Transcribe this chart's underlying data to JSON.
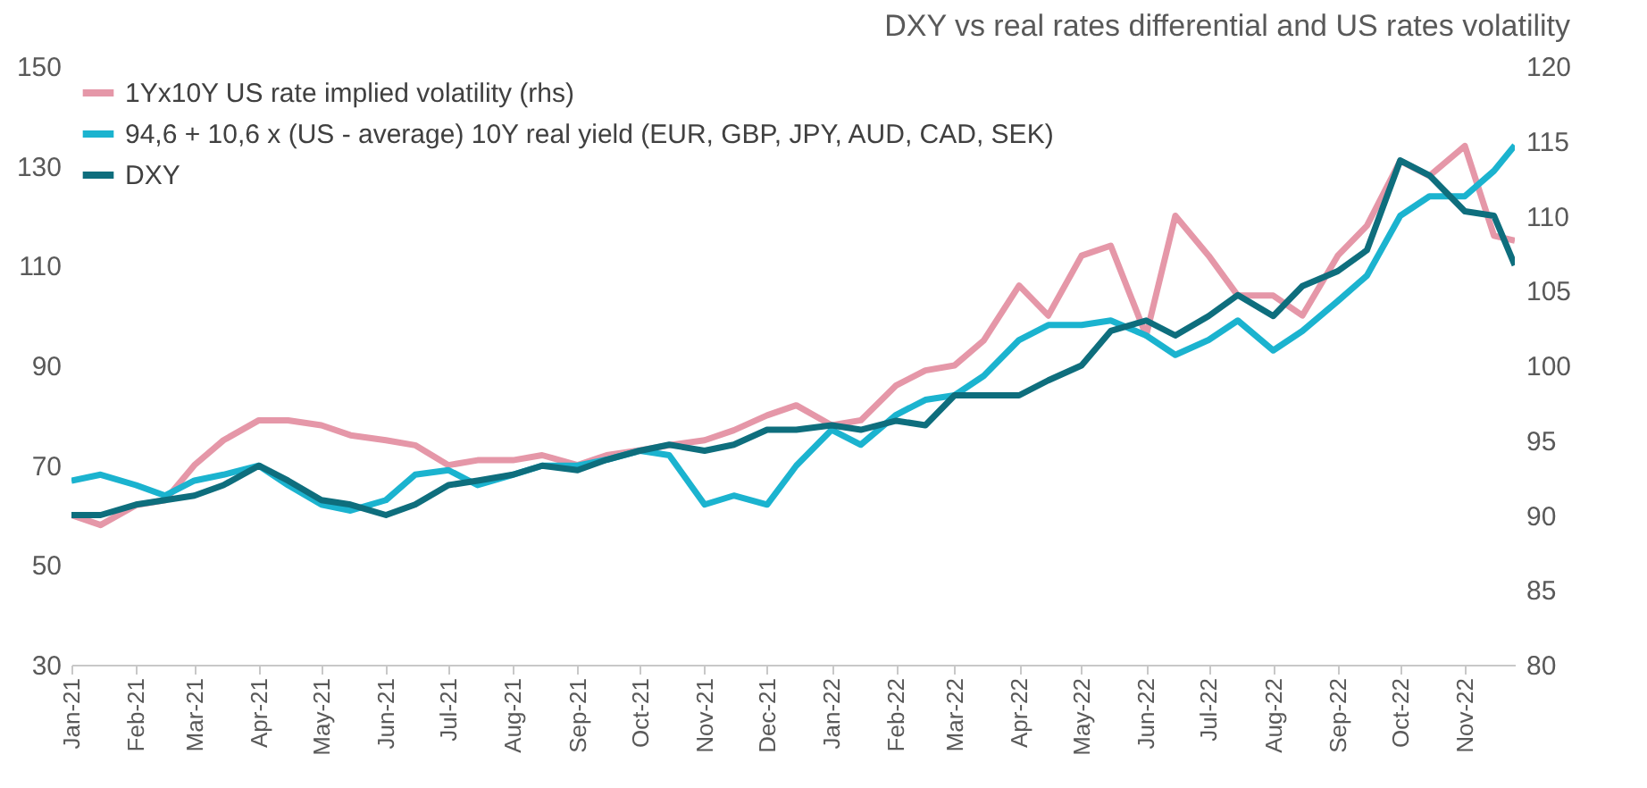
{
  "chart_data": {
    "type": "line",
    "title": "DXY vs real rates differential and US rates volatility",
    "x": [
      "2021-01-01",
      "2021-01-15",
      "2021-02-01",
      "2021-02-15",
      "2021-03-01",
      "2021-03-15",
      "2021-04-01",
      "2021-04-15",
      "2021-05-01",
      "2021-05-15",
      "2021-06-01",
      "2021-06-15",
      "2021-07-01",
      "2021-07-15",
      "2021-08-01",
      "2021-08-15",
      "2021-09-01",
      "2021-09-15",
      "2021-10-01",
      "2021-10-15",
      "2021-11-01",
      "2021-11-15",
      "2021-12-01",
      "2021-12-15",
      "2022-01-01",
      "2022-01-15",
      "2022-02-01",
      "2022-02-15",
      "2022-03-01",
      "2022-03-15",
      "2022-04-01",
      "2022-04-15",
      "2022-05-01",
      "2022-05-15",
      "2022-06-01",
      "2022-06-15",
      "2022-07-01",
      "2022-07-15",
      "2022-08-01",
      "2022-08-15",
      "2022-09-01",
      "2022-09-15",
      "2022-10-01",
      "2022-10-15",
      "2022-11-01",
      "2022-11-15",
      "2022-11-25"
    ],
    "series": [
      {
        "name": "1Yx10Y US rate implied volatility (rhs)",
        "color": "#e597a8",
        "values": [
          60,
          58,
          62,
          63,
          70,
          75,
          79,
          79,
          78,
          76,
          75,
          74,
          70,
          71,
          71,
          72,
          70,
          72,
          73,
          74,
          75,
          77,
          80,
          82,
          78,
          79,
          86,
          89,
          90,
          95,
          106,
          100,
          112,
          114,
          96,
          120,
          112,
          104,
          104,
          100,
          112,
          118,
          131,
          128,
          134,
          116,
          115
        ]
      },
      {
        "name": "94,6 + 10,6 x (US - average) 10Y real yield (EUR, GBP, JPY, AUD, CAD, SEK)",
        "color": "#1bb3cf",
        "axis": "y2",
        "values": [
          92.3,
          92.7,
          92,
          91.3,
          92.3,
          92.7,
          93.3,
          92,
          90.7,
          90.3,
          91,
          92.7,
          93,
          92,
          92.7,
          93.3,
          93.3,
          93.7,
          94.3,
          94,
          90.7,
          91.3,
          90.7,
          93.3,
          95.7,
          94.7,
          96.7,
          97.7,
          98,
          99.3,
          101.7,
          102.7,
          102.7,
          103,
          102,
          100.7,
          101.7,
          103,
          101,
          102.3,
          104.3,
          106,
          110,
          111.3,
          111.3,
          113,
          114.7
        ]
      },
      {
        "name": "DXY",
        "color": "#0e6e7d",
        "axis": "y2",
        "values": [
          90,
          90,
          90.7,
          91,
          91.3,
          92,
          93.3,
          92.3,
          91,
          90.7,
          90,
          90.7,
          92,
          92.3,
          92.7,
          93.3,
          93,
          93.7,
          94.3,
          94.7,
          94.3,
          94.7,
          95.7,
          95.7,
          96,
          95.7,
          96.3,
          96,
          98,
          98,
          98,
          99,
          100,
          102.3,
          103,
          102,
          103.3,
          104.7,
          103.3,
          105.3,
          106.3,
          107.7,
          113.7,
          112.7,
          110.3,
          110,
          106.7
        ]
      }
    ],
    "xlim": [
      "2021-01-01",
      "2022-11-25"
    ],
    "xticks": [
      {
        "value": "2021-01-01",
        "label": "Jan-21"
      },
      {
        "value": "2021-02-01",
        "label": "Feb-21"
      },
      {
        "value": "2021-03-01",
        "label": "Mar-21"
      },
      {
        "value": "2021-04-01",
        "label": "Apr-21"
      },
      {
        "value": "2021-05-01",
        "label": "May-21"
      },
      {
        "value": "2021-06-01",
        "label": "Jun-21"
      },
      {
        "value": "2021-07-01",
        "label": "Jul-21"
      },
      {
        "value": "2021-08-01",
        "label": "Aug-21"
      },
      {
        "value": "2021-09-01",
        "label": "Sep-21"
      },
      {
        "value": "2021-10-01",
        "label": "Oct-21"
      },
      {
        "value": "2021-11-01",
        "label": "Nov-21"
      },
      {
        "value": "2021-12-01",
        "label": "Dec-21"
      },
      {
        "value": "2022-01-01",
        "label": "Jan-22"
      },
      {
        "value": "2022-02-01",
        "label": "Feb-22"
      },
      {
        "value": "2022-03-01",
        "label": "Mar-22"
      },
      {
        "value": "2022-04-01",
        "label": "Apr-22"
      },
      {
        "value": "2022-05-01",
        "label": "May-22"
      },
      {
        "value": "2022-06-01",
        "label": "Jun-22"
      },
      {
        "value": "2022-07-01",
        "label": "Jul-22"
      },
      {
        "value": "2022-08-01",
        "label": "Aug-22"
      },
      {
        "value": "2022-09-01",
        "label": "Sep-22"
      },
      {
        "value": "2022-10-01",
        "label": "Oct-22"
      },
      {
        "value": "2022-11-01",
        "label": "Nov-22"
      }
    ],
    "ylim": [
      30,
      150
    ],
    "yticks": [
      30,
      50,
      70,
      90,
      110,
      130,
      150
    ],
    "y2lim": [
      80,
      120
    ],
    "y2ticks": [
      80,
      85,
      90,
      95,
      100,
      105,
      110,
      115,
      120
    ],
    "grid": false,
    "legend": "top left",
    "line_style": "solid"
  }
}
